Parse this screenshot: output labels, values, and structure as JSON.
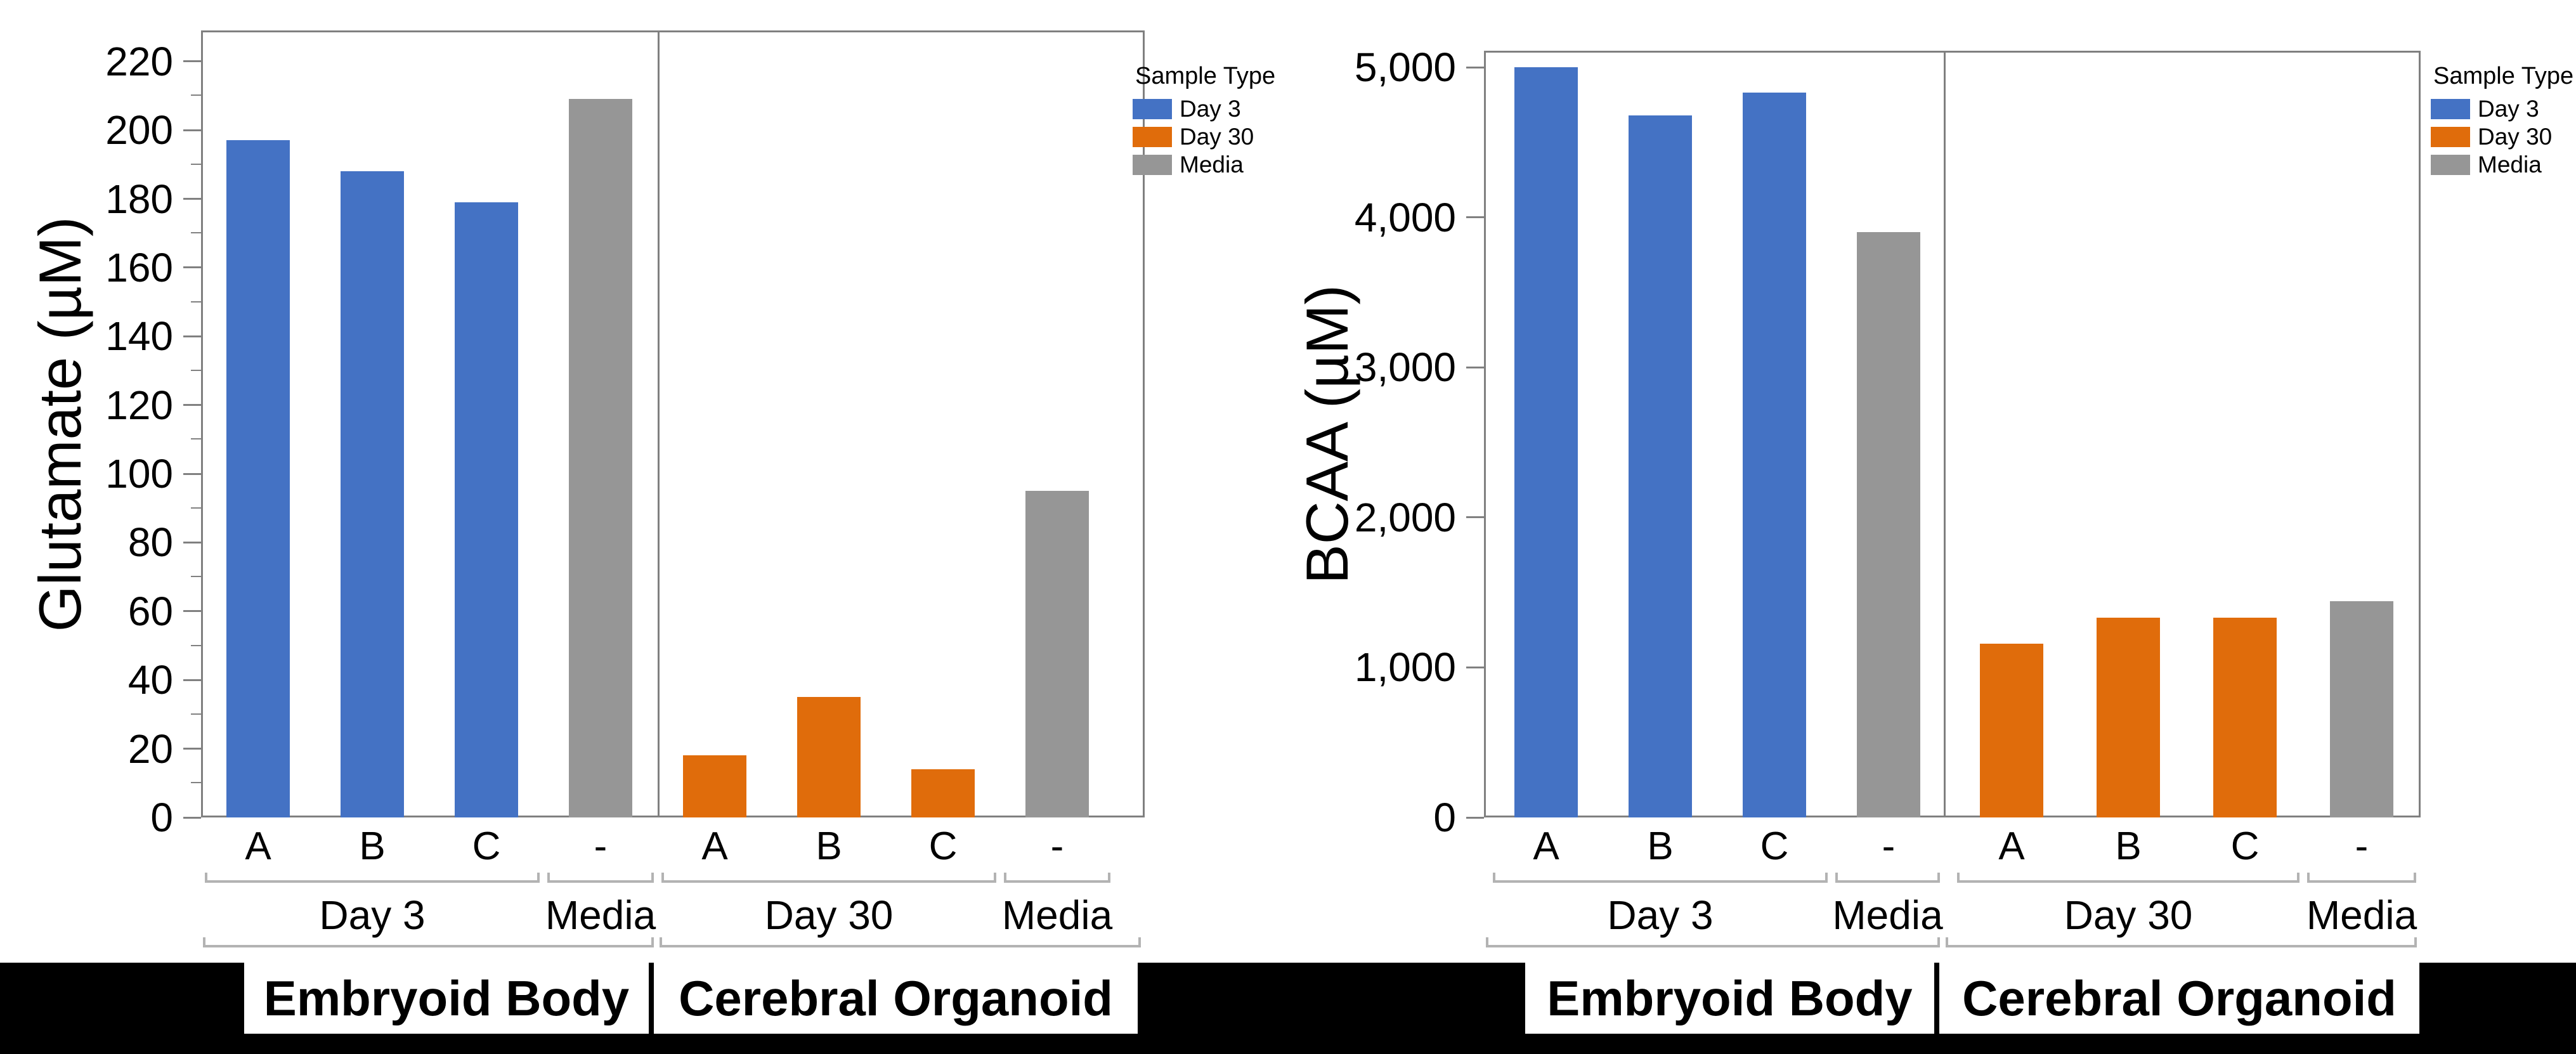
{
  "page": {
    "background": "#ffffff",
    "bottom_band_color": "#000000"
  },
  "series_colors": {
    "Day 3": "#4472C4",
    "Day 30": "#E06C0B",
    "Media": "#969696"
  },
  "style_colors": {
    "axis_frame": "#808080",
    "bracket": "#b3b3b3",
    "text": "#000000",
    "group_box_background": "#ffffff"
  },
  "legend": {
    "title": "Sample Type",
    "entries": [
      {
        "label": "Day 3",
        "series": "Day 3"
      },
      {
        "label": "Day 30",
        "series": "Day 30"
      },
      {
        "label": "Media",
        "series": "Media"
      }
    ]
  },
  "chart_data": [
    {
      "type": "bar",
      "title": "",
      "xlabel": "",
      "ylabel": "Glutamate (µM)",
      "ylim": [
        0,
        229
      ],
      "yticks": [
        0,
        20,
        40,
        60,
        80,
        100,
        120,
        140,
        160,
        180,
        200,
        220
      ],
      "ytick_labels": [
        "0",
        "20",
        "40",
        "60",
        "80",
        "100",
        "120",
        "140",
        "160",
        "180",
        "200",
        "220"
      ],
      "minor_yticks": [
        10,
        30,
        50,
        70,
        90,
        110,
        130,
        150,
        170,
        190,
        210
      ],
      "grid": false,
      "legend_title": "Sample Type",
      "legend_entries": [
        "Day 3",
        "Day 30",
        "Media"
      ],
      "legend_position": "outside-top-right",
      "groups": [
        {
          "label": "Embryoid Body",
          "subgroups": [
            {
              "label": "Day 3",
              "series": "Day 3",
              "bars": [
                {
                  "category": "A",
                  "value": 197
                },
                {
                  "category": "B",
                  "value": 188
                },
                {
                  "category": "C",
                  "value": 179
                }
              ]
            },
            {
              "label": "Media",
              "series": "Media",
              "bars": [
                {
                  "category": "-",
                  "value": 209
                }
              ]
            }
          ]
        },
        {
          "label": "Cerebral Organoid",
          "subgroups": [
            {
              "label": "Day 30",
              "series": "Day 30",
              "bars": [
                {
                  "category": "A",
                  "value": 18
                },
                {
                  "category": "B",
                  "value": 35
                },
                {
                  "category": "C",
                  "value": 14
                }
              ]
            },
            {
              "label": "Media",
              "series": "Media",
              "bars": [
                {
                  "category": "-",
                  "value": 95
                }
              ]
            }
          ]
        }
      ]
    },
    {
      "type": "bar",
      "title": "",
      "xlabel": "",
      "ylabel": "BCAA (µM)",
      "ylim": [
        0,
        5110
      ],
      "yticks": [
        0,
        1000,
        2000,
        3000,
        4000,
        5000
      ],
      "ytick_labels": [
        "0",
        "1,000",
        "2,000",
        "3,000",
        "4,000",
        "5,000"
      ],
      "minor_yticks": [],
      "grid": false,
      "legend_title": "Sample Type",
      "legend_entries": [
        "Day 3",
        "Day 30",
        "Media"
      ],
      "legend_position": "outside-top-right",
      "groups": [
        {
          "label": "Embryoid Body",
          "subgroups": [
            {
              "label": "Day 3",
              "series": "Day 3",
              "bars": [
                {
                  "category": "A",
                  "value": 5000
                },
                {
                  "category": "B",
                  "value": 4680
                },
                {
                  "category": "C",
                  "value": 4830
                }
              ]
            },
            {
              "label": "Media",
              "series": "Media",
              "bars": [
                {
                  "category": "-",
                  "value": 3900
                }
              ]
            }
          ]
        },
        {
          "label": "Cerebral Organoid",
          "subgroups": [
            {
              "label": "Day 30",
              "series": "Day 30",
              "bars": [
                {
                  "category": "A",
                  "value": 1160
                },
                {
                  "category": "B",
                  "value": 1330
                },
                {
                  "category": "C",
                  "value": 1330
                }
              ]
            },
            {
              "label": "Media",
              "series": "Media",
              "bars": [
                {
                  "category": "-",
                  "value": 1440
                }
              ]
            }
          ]
        }
      ]
    }
  ]
}
